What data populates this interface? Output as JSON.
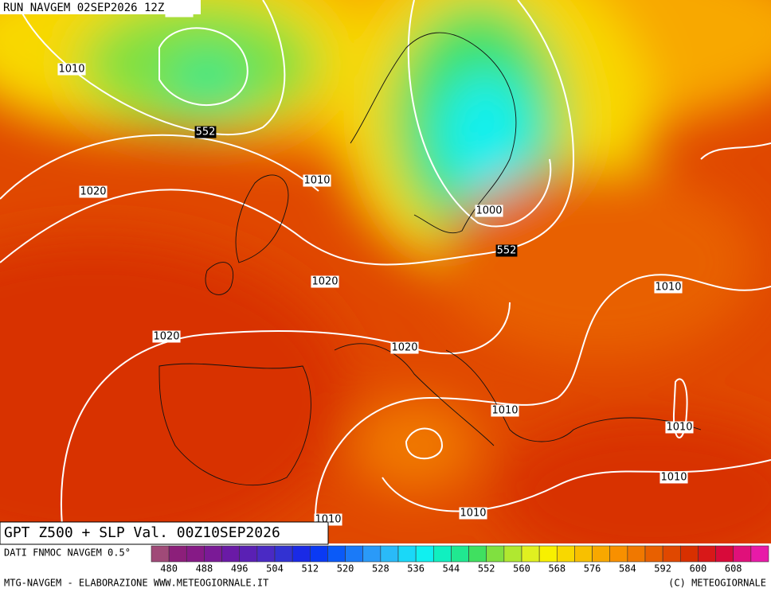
{
  "header": {
    "run": "RUN NAVGEM 02SEP2026 12Z",
    "title": "GPT Z500 + SLP Val. 00Z10SEP2026"
  },
  "map": {
    "labels": [
      "1000",
      "1010",
      "552",
      "1010",
      "1020",
      "1000",
      "552",
      "1020",
      "1010",
      "1020",
      "1020",
      "1010",
      "1010",
      "1010",
      "1010",
      "1010"
    ]
  },
  "legend": {
    "source": "DATI FNMOC NAVGEM 0.5°",
    "ticks": [
      480,
      488,
      496,
      504,
      512,
      520,
      528,
      536,
      544,
      552,
      560,
      568,
      576,
      584,
      592,
      600,
      608
    ],
    "colors": [
      "#a04a78",
      "#8c1f7a",
      "#861a86",
      "#7a1a96",
      "#6a1aa6",
      "#5a20b4",
      "#4a2ac4",
      "#3232d2",
      "#1a2ae6",
      "#0a3af4",
      "#0a5af8",
      "#1a7af8",
      "#2a9af8",
      "#2abaf8",
      "#1ad8f8",
      "#10f0f0",
      "#10f0c0",
      "#20e890",
      "#40e060",
      "#80e040",
      "#b0e830",
      "#e0f020",
      "#f8f000",
      "#f8d800",
      "#f8c000",
      "#f8a800",
      "#f89000",
      "#f07800",
      "#e86000",
      "#e04800",
      "#d83000",
      "#d81818",
      "#d80a3a",
      "#e0107a",
      "#e81aa8"
    ]
  },
  "footer": {
    "left": "MTG-NAVGEM - ELABORAZIONE WWW.METEOGIORNALE.IT",
    "right": "(C) METEOGIORNALE"
  }
}
